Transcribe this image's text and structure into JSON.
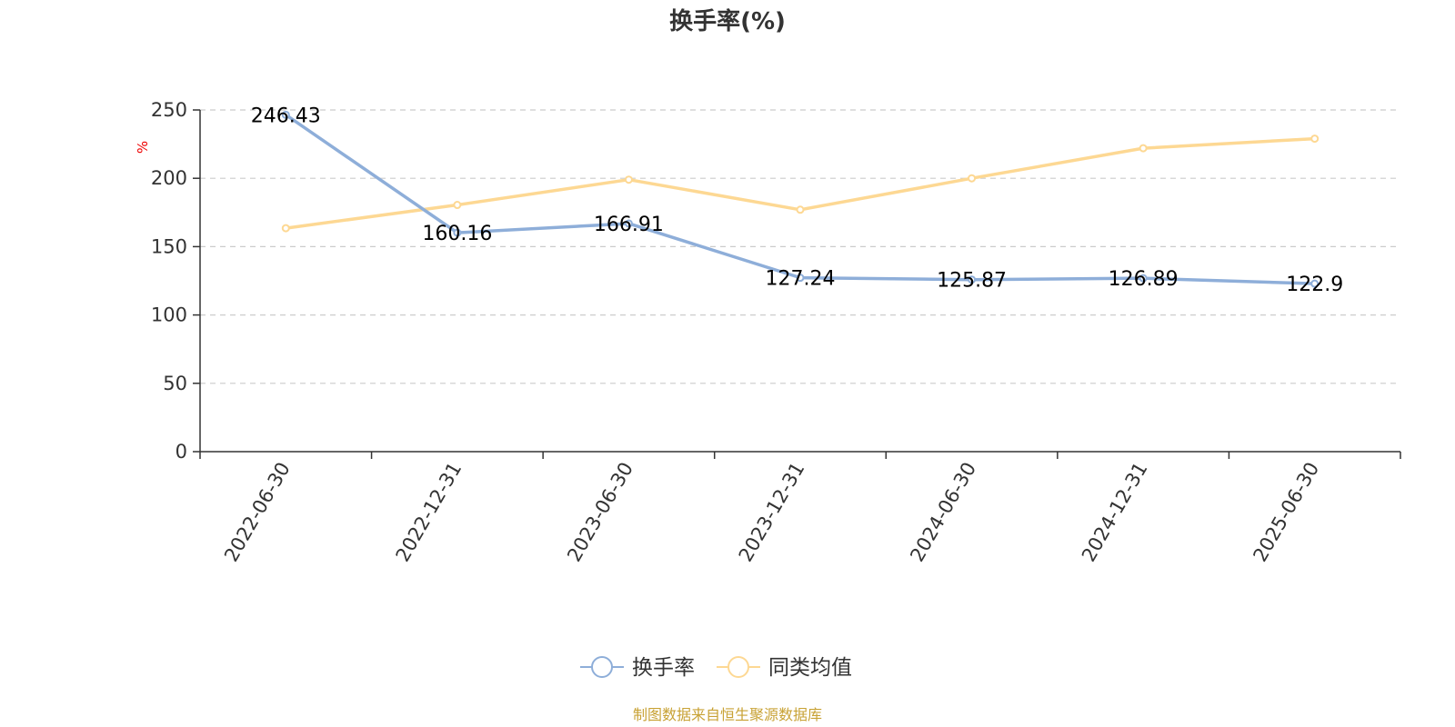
{
  "chart_data": {
    "type": "line",
    "title": "换手率(%)",
    "ylabel": "%",
    "xlabel": "",
    "categories": [
      "2022-06-30",
      "2022-12-31",
      "2023-06-30",
      "2023-12-31",
      "2024-06-30",
      "2024-12-31",
      "2025-06-30"
    ],
    "ylim": [
      0,
      250
    ],
    "yticks": [
      0,
      50,
      100,
      150,
      200,
      250
    ],
    "grid": true,
    "legend_position": "bottom",
    "series": [
      {
        "name": "换手率",
        "color": "#8eaed9",
        "values": [
          246.43,
          160.16,
          166.91,
          127.24,
          125.87,
          126.89,
          122.9
        ],
        "labels": [
          "246.43",
          "160.16",
          "166.91",
          "127.24",
          "125.87",
          "126.89",
          "122.9"
        ]
      },
      {
        "name": "同类均值",
        "color": "#fdd893",
        "values": [
          163.5,
          180.5,
          199.0,
          177.0,
          200.0,
          222.0,
          229.0
        ]
      }
    ]
  },
  "footer": {
    "source": "制图数据来自恒生聚源数据库",
    "source_color": "#c8a235"
  },
  "ylabel_color": "#ee0000"
}
